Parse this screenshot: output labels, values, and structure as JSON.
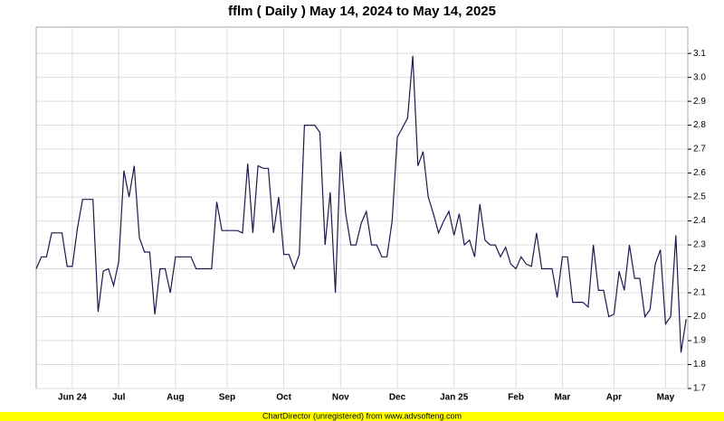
{
  "chart_data": {
    "type": "line",
    "title": "fflm ( Daily ) May 14, 2024 to May 14, 2025",
    "credit": "ChartDirector (unregistered) from www.advsofteng.com",
    "categories": [
      null,
      null,
      null,
      null,
      null,
      null,
      null,
      "Jun 24",
      null,
      null,
      null,
      null,
      null,
      null,
      null,
      null,
      "Jul",
      null,
      null,
      null,
      null,
      null,
      null,
      null,
      null,
      null,
      null,
      "Aug",
      null,
      null,
      null,
      null,
      null,
      null,
      null,
      null,
      null,
      "Sep",
      null,
      null,
      null,
      null,
      null,
      null,
      null,
      null,
      null,
      null,
      "Oct",
      null,
      null,
      null,
      null,
      null,
      null,
      null,
      null,
      null,
      null,
      "Nov",
      null,
      null,
      null,
      null,
      null,
      null,
      null,
      null,
      null,
      null,
      "Dec",
      null,
      null,
      null,
      null,
      null,
      null,
      null,
      null,
      null,
      null,
      "Jan 25",
      null,
      null,
      null,
      null,
      null,
      null,
      null,
      null,
      null,
      null,
      null,
      "Feb",
      null,
      null,
      null,
      null,
      null,
      null,
      null,
      null,
      "Mar",
      null,
      null,
      null,
      null,
      null,
      null,
      null,
      null,
      null,
      "Apr",
      null,
      null,
      null,
      null,
      null,
      null,
      null,
      null,
      null,
      "May",
      null,
      null,
      null,
      null
    ],
    "values": [
      2.2,
      2.25,
      2.25,
      2.35,
      2.35,
      2.35,
      2.21,
      2.21,
      2.37,
      2.49,
      2.49,
      2.49,
      2.02,
      2.19,
      2.2,
      2.13,
      2.23,
      2.61,
      2.5,
      2.63,
      2.33,
      2.27,
      2.27,
      2.01,
      2.2,
      2.2,
      2.1,
      2.25,
      2.25,
      2.25,
      2.25,
      2.2,
      2.2,
      2.2,
      2.2,
      2.48,
      2.36,
      2.36,
      2.36,
      2.36,
      2.35,
      2.64,
      2.35,
      2.63,
      2.62,
      2.62,
      2.35,
      2.5,
      2.26,
      2.26,
      2.2,
      2.26,
      2.8,
      2.8,
      2.8,
      2.77,
      2.3,
      2.52,
      2.1,
      2.69,
      2.43,
      2.3,
      2.3,
      2.39,
      2.44,
      2.3,
      2.3,
      2.25,
      2.25,
      2.4,
      2.75,
      2.79,
      2.83,
      3.09,
      2.63,
      2.69,
      2.5,
      2.43,
      2.35,
      2.4,
      2.44,
      2.34,
      2.43,
      2.3,
      2.32,
      2.25,
      2.47,
      2.32,
      2.3,
      2.3,
      2.25,
      2.29,
      2.22,
      2.2,
      2.25,
      2.22,
      2.21,
      2.35,
      2.2,
      2.2,
      2.2,
      2.08,
      2.25,
      2.25,
      2.06,
      2.06,
      2.06,
      2.04,
      2.3,
      2.11,
      2.11,
      2.0,
      2.01,
      2.19,
      2.11,
      2.3,
      2.16,
      2.16,
      2.0,
      2.03,
      2.22,
      2.28,
      1.97,
      2.0,
      2.34,
      1.85,
      1.99
    ],
    "color": "#1a1a4e",
    "ylim": [
      1.7,
      3.21
    ],
    "yticks": [
      1.7,
      1.8,
      1.9,
      {
        "value": 2,
        "label": "2.0"
      },
      2.1,
      2.2,
      2.3,
      2.4,
      2.5,
      2.6,
      2.7,
      2.8,
      2.9,
      {
        "value": 3,
        "label": "3.0"
      },
      3.1
    ],
    "grid": true
  }
}
